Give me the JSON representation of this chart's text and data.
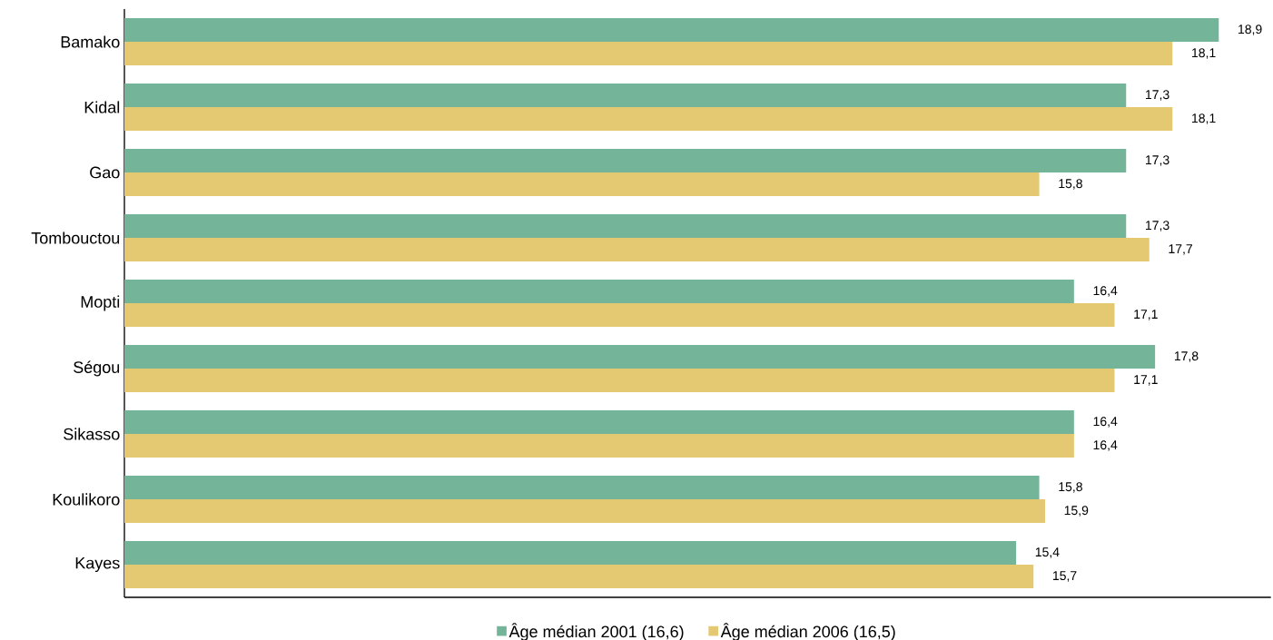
{
  "chart_data": {
    "type": "bar",
    "orientation": "horizontal",
    "categories": [
      "Bamako",
      "Kidal",
      "Gao",
      "Tombouctou",
      "Mopti",
      "Ségou",
      "Sikasso",
      "Koulikoro",
      "Kayes"
    ],
    "series": [
      {
        "name": "Âge médian 2001 (16,6)",
        "color": "#74b59a",
        "values": [
          18.9,
          17.3,
          17.3,
          17.3,
          16.4,
          17.8,
          16.4,
          15.8,
          15.4
        ],
        "value_labels": [
          "18,9",
          "17,3",
          "17,3",
          "17,3",
          "16,4",
          "17,8",
          "16,4",
          "15,8",
          "15,4"
        ]
      },
      {
        "name": "Âge médian 2006 (16,5)",
        "color": "#e5c872",
        "values": [
          18.1,
          18.1,
          15.8,
          17.7,
          17.1,
          17.1,
          16.4,
          15.9,
          15.7
        ],
        "value_labels": [
          "18,1",
          "18,1",
          "15,8",
          "17,7",
          "17,1",
          "17,1",
          "16,4",
          "15,9",
          "15,7"
        ]
      }
    ],
    "xlim": [
      0,
      19.8
    ],
    "tick_labels": "y",
    "grid": false,
    "legend": "bottom"
  }
}
